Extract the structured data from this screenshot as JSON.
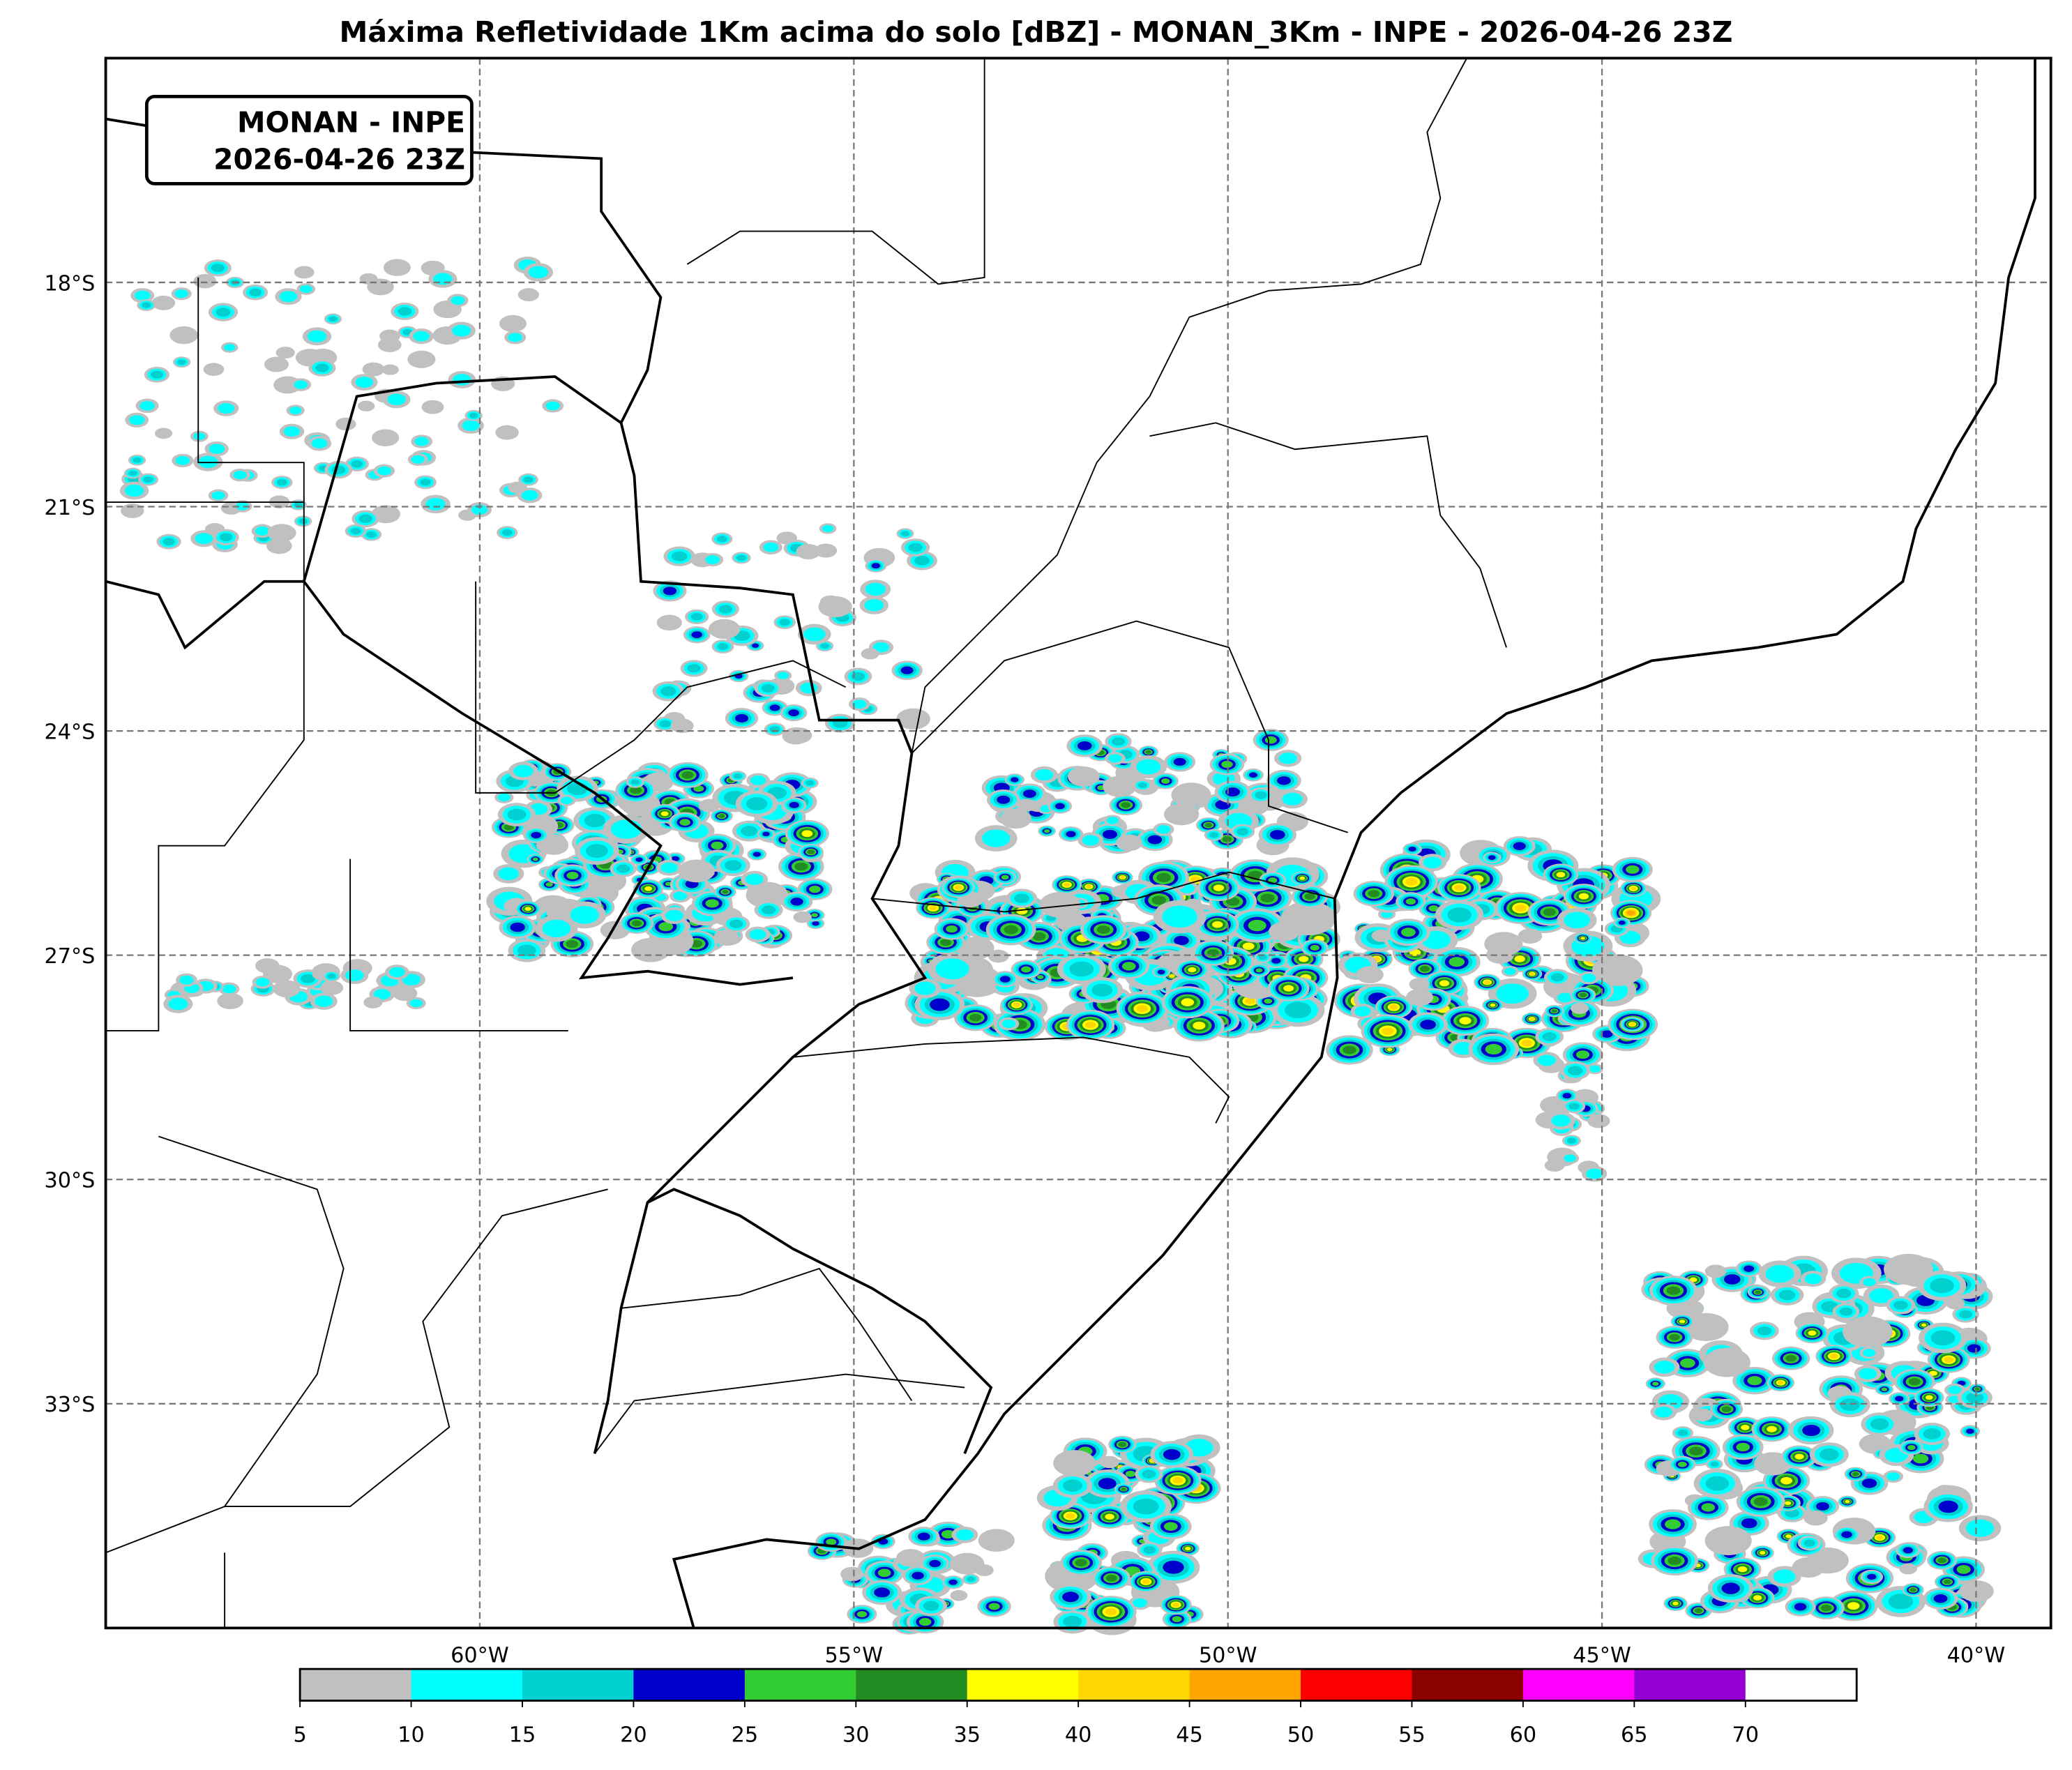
{
  "title": "Máxima Refletividade 1Km acima do solo [dBZ] - MONAN_3Km - INPE - 2026-04-26 23Z",
  "info_box": {
    "line1": "MONAN - INPE",
    "line2": "2026-04-26 23Z"
  },
  "map": {
    "extent_lon": [
      -65,
      -39
    ],
    "extent_lat": [
      -36,
      -15
    ],
    "gridlines": true,
    "lat_ticks": [
      "18°S",
      "21°S",
      "24°S",
      "27°S",
      "30°S",
      "33°S"
    ],
    "lon_ticks": [
      "60°W",
      "55°W",
      "50°W",
      "45°W",
      "40°W"
    ],
    "variable": "reflectivity dBZ"
  },
  "colorbar": {
    "levels": [
      "5",
      "10",
      "15",
      "20",
      "25",
      "30",
      "35",
      "40",
      "45",
      "50",
      "55",
      "60",
      "65",
      "70"
    ],
    "colors": [
      "#c0c0c0",
      "#00ffff",
      "#00d0d0",
      "#0000cd",
      "#32cd32",
      "#228b22",
      "#ffff00",
      "#ffd700",
      "#ffa500",
      "#ff0000",
      "#8b0000",
      "#ff00ff",
      "#9400d3",
      "#ffffff"
    ]
  }
}
